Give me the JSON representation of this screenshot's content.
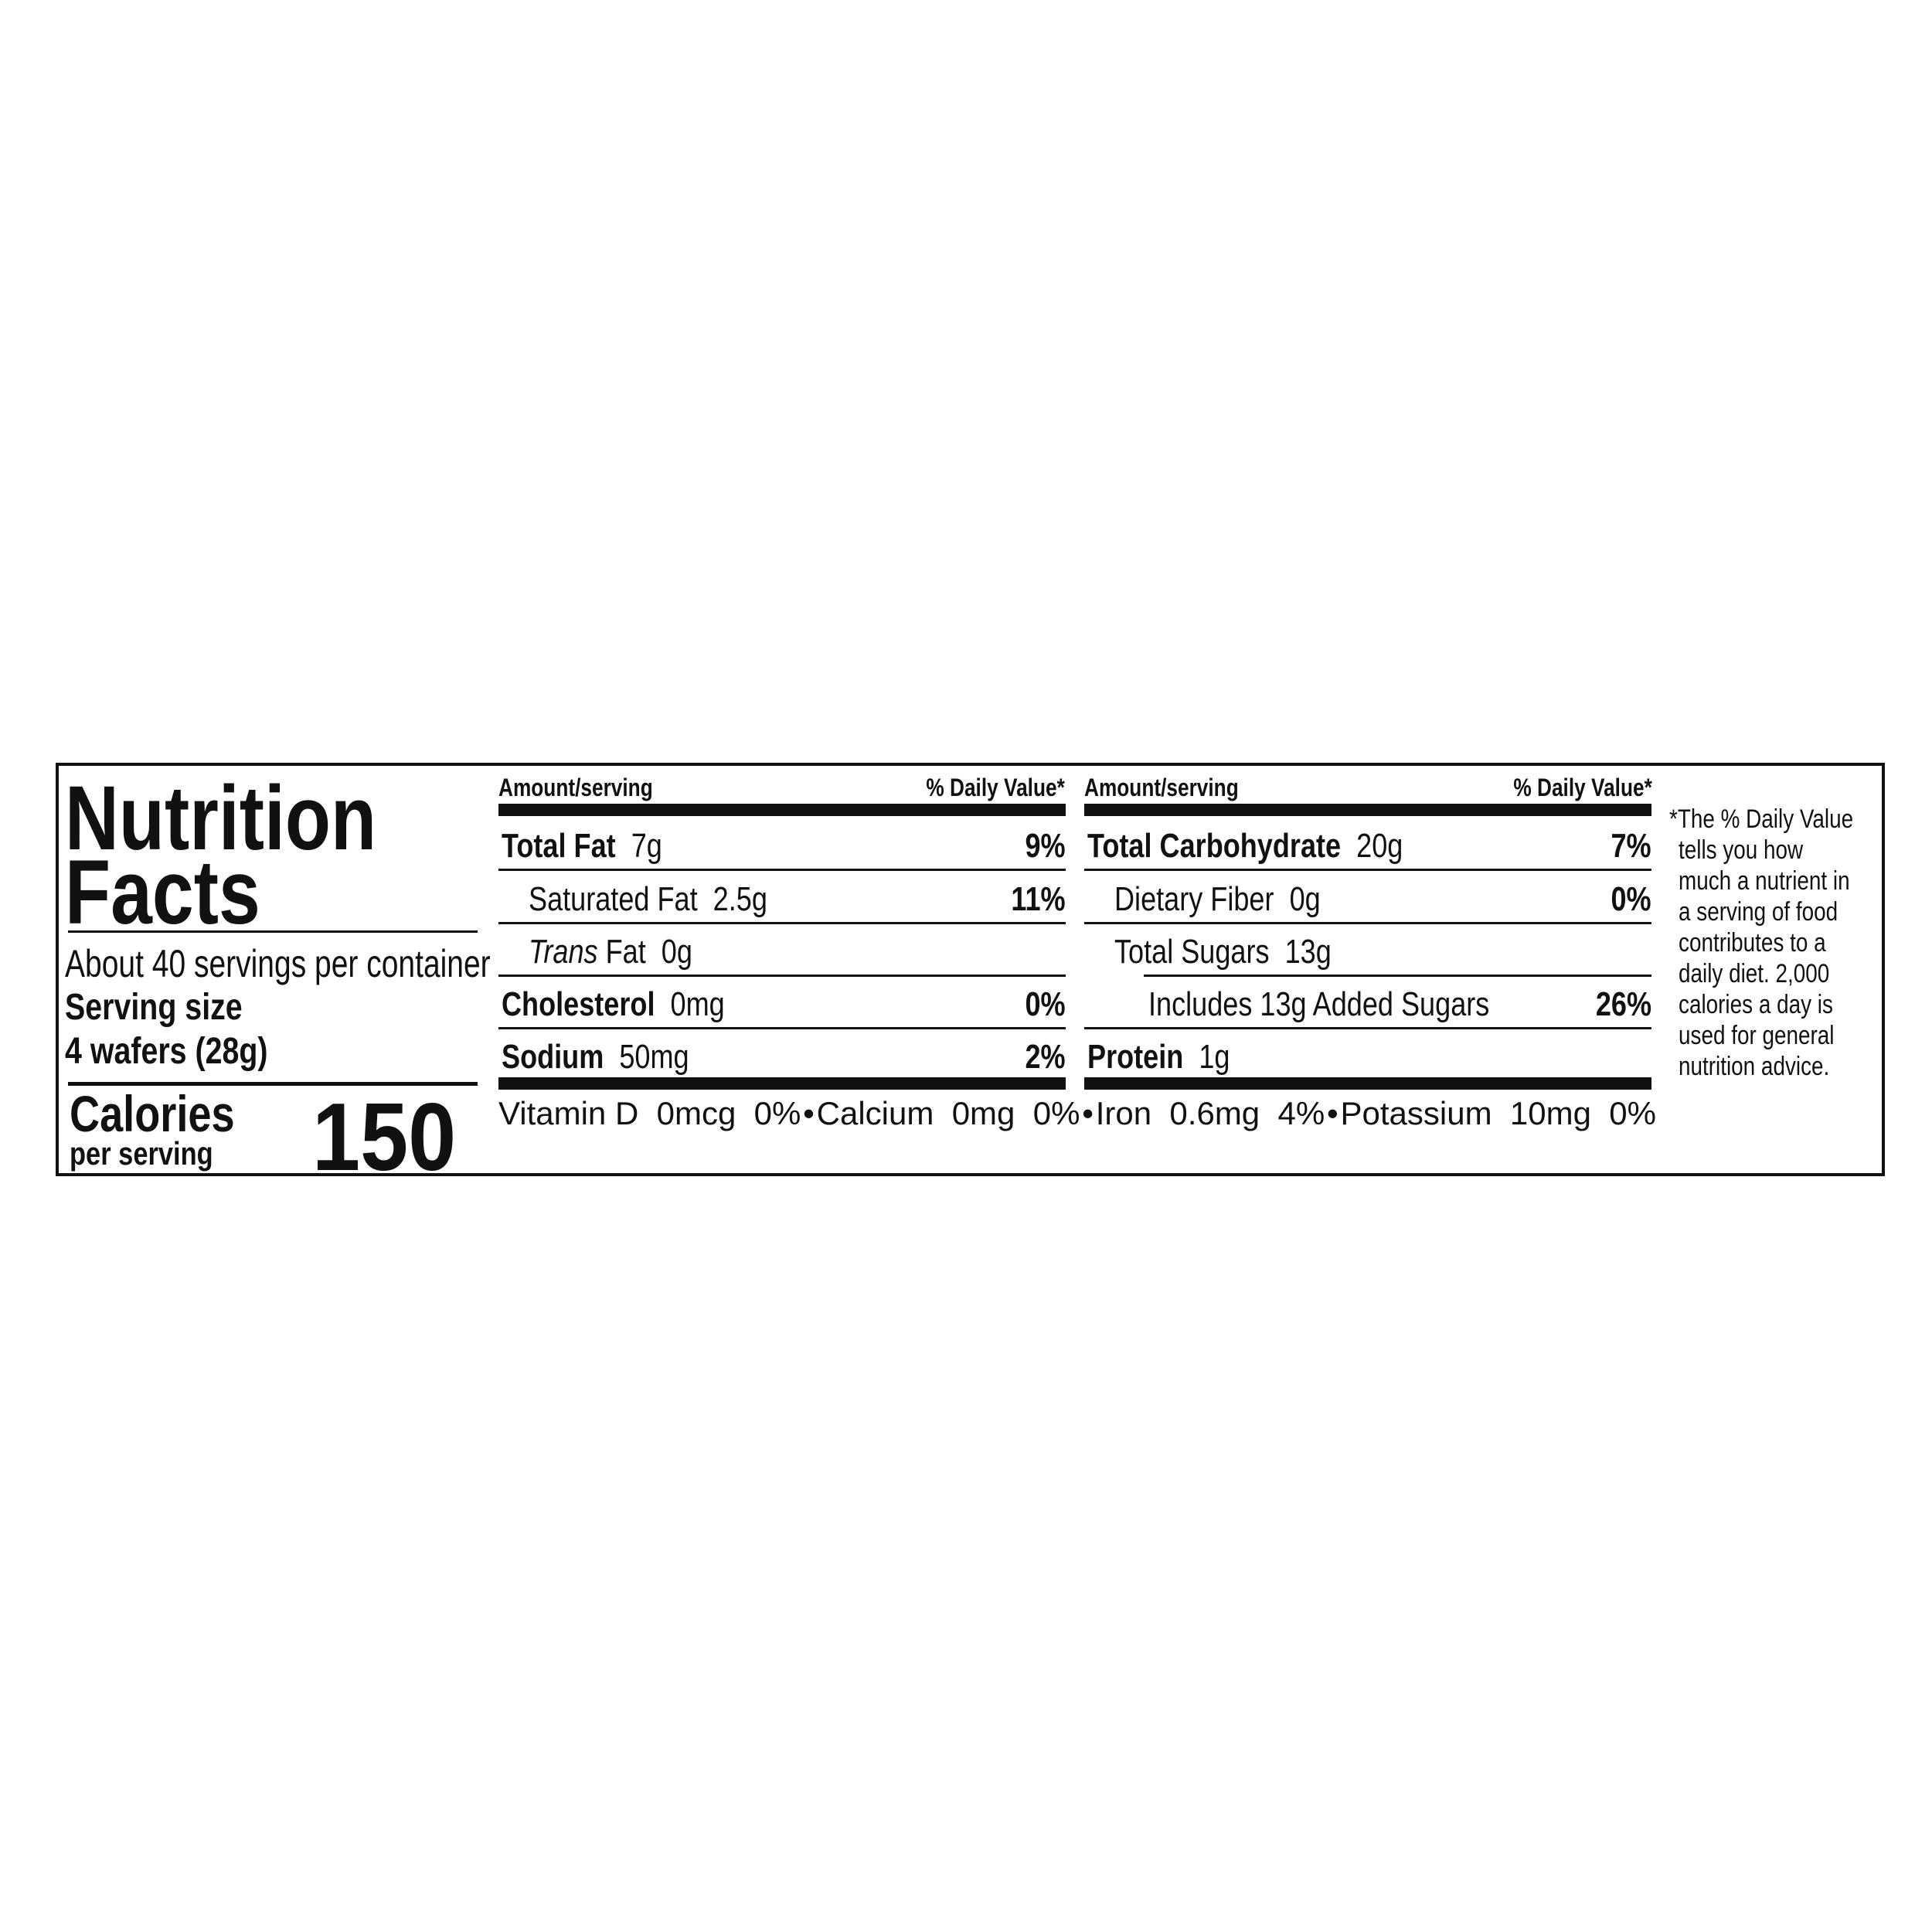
{
  "title_line1": "Nutrition",
  "title_line2": "Facts",
  "servings": "About 40 servings per container",
  "serving_size_label": "Serving size",
  "serving_size_value": "4 wafers (28g)",
  "calories_label": "Calories",
  "calories_sub": "per serving",
  "calories_value": "150",
  "header": {
    "amount": "Amount/serving",
    "dv": "% Daily Value*"
  },
  "left_rows": [
    {
      "name": "Total Fat",
      "amount": "7g",
      "dv": "9%"
    },
    {
      "name": "Saturated Fat",
      "amount": "2.5g",
      "dv": "11%"
    },
    {
      "name": "Trans",
      "name2": "Fat",
      "amount": "0g",
      "dv": ""
    },
    {
      "name": "Cholesterol",
      "amount": "0mg",
      "dv": "0%"
    },
    {
      "name": "Sodium",
      "amount": "50mg",
      "dv": "2%"
    }
  ],
  "right_rows": [
    {
      "name": "Total Carbohydrate",
      "amount": "20g",
      "dv": "7%"
    },
    {
      "name": "Dietary Fiber",
      "amount": "0g",
      "dv": "0%"
    },
    {
      "name": "Total Sugars",
      "amount": "13g",
      "dv": ""
    },
    {
      "name": "Includes 13g Added Sugars",
      "amount": "",
      "dv": "26%"
    },
    {
      "name": "Protein",
      "amount": "1g",
      "dv": ""
    }
  ],
  "vitamins": [
    {
      "text": "Vitamin D  0mcg  0%"
    },
    {
      "text": "•"
    },
    {
      "text": "Calcium  0mg  0%"
    },
    {
      "text": "•"
    },
    {
      "text": "Iron  0.6mg  4%"
    },
    {
      "text": "•"
    },
    {
      "text": "Potassium  10mg  0%"
    }
  ],
  "footnote": [
    "*The % Daily Value",
    "tells you how",
    "much a nutrient in",
    "a serving of food",
    "contributes to a",
    "daily diet. 2,000",
    "calories a day is",
    "used for general",
    "nutrition advice."
  ]
}
